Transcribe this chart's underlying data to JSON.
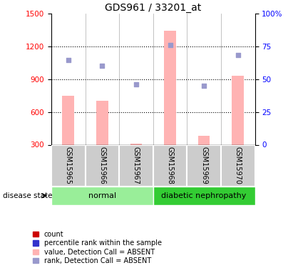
{
  "title": "GDS961 / 33201_at",
  "samples": [
    "GSM15965",
    "GSM15966",
    "GSM15967",
    "GSM15968",
    "GSM15969",
    "GSM15970"
  ],
  "bar_values": [
    750,
    700,
    310,
    1340,
    380,
    930
  ],
  "dot_values": [
    1075,
    1020,
    855,
    1210,
    840,
    1120
  ],
  "ylim_left": [
    300,
    1500
  ],
  "ylim_right": [
    0,
    100
  ],
  "yticks_left": [
    300,
    600,
    900,
    1200,
    1500
  ],
  "yticks_right": [
    0,
    25,
    50,
    75,
    100
  ],
  "ytick_right_labels": [
    "0",
    "25",
    "50",
    "75",
    "100%"
  ],
  "bar_color": "#ffb3b3",
  "dot_color": "#9999cc",
  "normal_label": "normal",
  "diabetic_label": "diabetic nephropathy",
  "normal_color": "#99ee99",
  "diabetic_color": "#33cc33",
  "disease_state_label": "disease state",
  "legend_colors": [
    "#cc0000",
    "#3333cc",
    "#ffb3b3",
    "#9999cc"
  ],
  "legend_labels": [
    "count",
    "percentile rank within the sample",
    "value, Detection Call = ABSENT",
    "rank, Detection Call = ABSENT"
  ],
  "title_fontsize": 10,
  "tick_fontsize": 7.5,
  "sample_fontsize": 7,
  "legend_fontsize": 7,
  "disease_fontsize": 8
}
